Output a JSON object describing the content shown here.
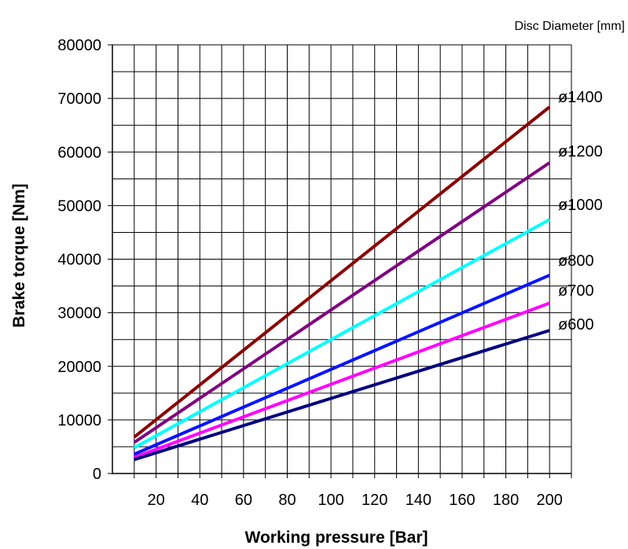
{
  "chart_data": {
    "type": "line",
    "legend_title": "Disc Diameter [mm]",
    "xlabel": "Working pressure [Bar]",
    "ylabel": "Brake torque [Nm]",
    "xlim": [
      0,
      210
    ],
    "ylim": [
      0,
      80000
    ],
    "xticks": [
      20,
      40,
      60,
      80,
      100,
      120,
      140,
      160,
      180,
      200
    ],
    "yticks": [
      0,
      10000,
      20000,
      30000,
      40000,
      50000,
      60000,
      70000,
      80000
    ],
    "grid": true,
    "series": [
      {
        "name": "ø1400",
        "color": "#8b0000",
        "x": [
          10,
          200
        ],
        "y": [
          6800,
          68400
        ]
      },
      {
        "name": "ø1200",
        "color": "#800080",
        "x": [
          10,
          200
        ],
        "y": [
          5800,
          58000
        ]
      },
      {
        "name": "ø1000",
        "color": "#00ffff",
        "x": [
          10,
          200
        ],
        "y": [
          4800,
          47400
        ]
      },
      {
        "name": "ø800",
        "color": "#0a14ff",
        "x": [
          10,
          200
        ],
        "y": [
          3600,
          37000
        ]
      },
      {
        "name": "ø700",
        "color": "#ff00ff",
        "x": [
          10,
          200
        ],
        "y": [
          3000,
          31800
        ]
      },
      {
        "name": "ø600",
        "color": "#00007f",
        "x": [
          10,
          200
        ],
        "y": [
          2600,
          26700
        ]
      }
    ]
  }
}
